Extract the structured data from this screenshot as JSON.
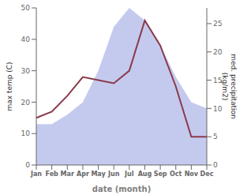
{
  "chart_data": {
    "type": "line",
    "categories": [
      "Jan",
      "Feb",
      "Mar",
      "Apr",
      "May",
      "Jun",
      "Jul",
      "Aug",
      "Sep",
      "Oct",
      "Nov",
      "Dec"
    ],
    "series": [
      {
        "type": "area",
        "color": "#b0b8e8",
        "values": [
          13,
          13,
          16,
          20,
          30,
          44,
          50,
          46,
          38,
          28,
          20,
          18
        ]
      },
      {
        "type": "line",
        "color": "#8B3A4A",
        "values": [
          15,
          17,
          22,
          28,
          27,
          26,
          30,
          46,
          38,
          25,
          9,
          9
        ]
      }
    ],
    "xlabel": "date (month)",
    "ylabel": "max temp (C)",
    "y2label": "med. precipitation\n(kg/m2)",
    "ylim": [
      0,
      50
    ],
    "yticks": [
      0,
      10,
      20,
      30,
      40,
      50
    ],
    "y2lim": [
      0,
      27.78
    ],
    "y2ticks": [
      0,
      5,
      10,
      15,
      20,
      25
    ],
    "grid": false
  }
}
